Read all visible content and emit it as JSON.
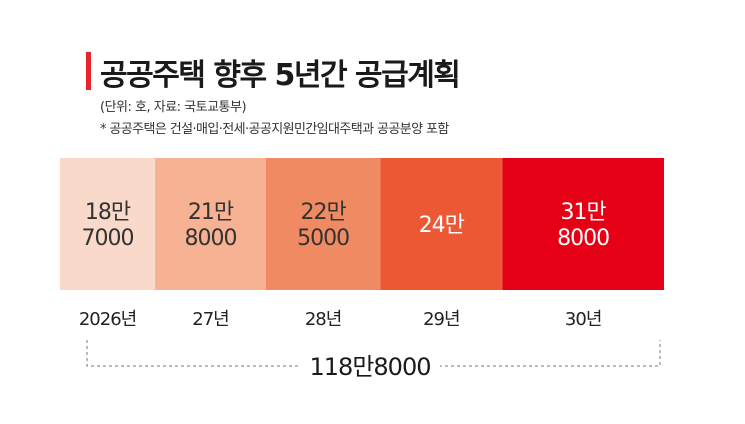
{
  "title": "공공주택 향후 5년간 공급계획",
  "subtitle": "(단위: 호, 자료: 국토교통부)",
  "note": "* 공공주택은 건설·매입·전세·공공지원민간임대주택과 공공분양 포함",
  "chart_data": {
    "type": "bar",
    "orientation": "horizontal-stacked",
    "categories": [
      "2026년",
      "27년",
      "28년",
      "29년",
      "30년"
    ],
    "values": [
      187000,
      218000,
      225000,
      240000,
      318000
    ],
    "value_labels": [
      [
        "18만",
        "7000"
      ],
      [
        "21만",
        "8000"
      ],
      [
        "22만",
        "5000"
      ],
      [
        "24만"
      ],
      [
        "31만",
        "8000"
      ]
    ],
    "segment_colors": [
      "#f9d9c9",
      "#f6b293",
      "#f08a63",
      "#ec5834",
      "#e60016"
    ],
    "label_colors": [
      "#333333",
      "#333333",
      "#333333",
      "#ffffff",
      "#ffffff"
    ],
    "total": 1188000,
    "total_label": "118만8000"
  }
}
